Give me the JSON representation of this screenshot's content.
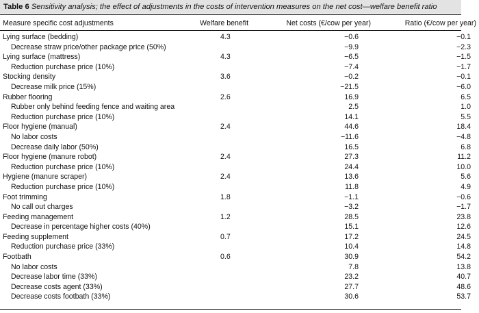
{
  "caption": {
    "label": "Table 6",
    "text": "Sensitivity analysis; the effect of adjustments in the costs of intervention measures on the net cost—welfare benefit ratio"
  },
  "headers": [
    "Measure specific cost adjustments",
    "Welfare benefit",
    "Net costs (€/cow per year)",
    "Ratio (€/cow per year)"
  ],
  "rows": [
    {
      "measure": "Lying surface (bedding)",
      "sub": false,
      "welfare": "4.3",
      "net": "−0.6",
      "ratio": "−0.1"
    },
    {
      "measure": "Decrease straw price/other package price (50%)",
      "sub": true,
      "welfare": "",
      "net": "−9.9",
      "ratio": "−2.3"
    },
    {
      "measure": "Lying surface (mattress)",
      "sub": false,
      "welfare": "4.3",
      "net": "−6.5",
      "ratio": "−1.5"
    },
    {
      "measure": "Reduction purchase price (10%)",
      "sub": true,
      "welfare": "",
      "net": "−7.4",
      "ratio": "−1.7"
    },
    {
      "measure": "Stocking density",
      "sub": false,
      "welfare": "3.6",
      "net": "−0.2",
      "ratio": "−0.1"
    },
    {
      "measure": "Decrease milk price (15%)",
      "sub": true,
      "welfare": "",
      "net": "−21.5",
      "ratio": "−6.0"
    },
    {
      "measure": "Rubber flooring",
      "sub": false,
      "welfare": "2.6",
      "net": "16.9",
      "ratio": "6.5"
    },
    {
      "measure": "Rubber only behind feeding fence and waiting area",
      "sub": true,
      "welfare": "",
      "net": "2.5",
      "ratio": "1.0"
    },
    {
      "measure": "Reduction purchase price (10%)",
      "sub": true,
      "welfare": "",
      "net": "14.1",
      "ratio": "5.5"
    },
    {
      "measure": "Floor hygiene (manual)",
      "sub": false,
      "welfare": "2.4",
      "net": "44.6",
      "ratio": "18.4"
    },
    {
      "measure": "No labor costs",
      "sub": true,
      "welfare": "",
      "net": "−11.6",
      "ratio": "−4.8"
    },
    {
      "measure": "Decrease daily labor (50%)",
      "sub": true,
      "welfare": "",
      "net": "16.5",
      "ratio": "6.8"
    },
    {
      "measure": "Floor hygiene (manure robot)",
      "sub": false,
      "welfare": "2.4",
      "net": "27.3",
      "ratio": "11.2"
    },
    {
      "measure": "Reduction purchase price (10%)",
      "sub": true,
      "welfare": "",
      "net": "24.4",
      "ratio": "10.0"
    },
    {
      "measure": "Hygiene (manure scraper)",
      "sub": false,
      "welfare": "2.4",
      "net": "13.6",
      "ratio": "5.6"
    },
    {
      "measure": "Reduction purchase price (10%)",
      "sub": true,
      "welfare": "",
      "net": "11.8",
      "ratio": "4.9"
    },
    {
      "measure": "Foot trimming",
      "sub": false,
      "welfare": "1.8",
      "net": "−1.1",
      "ratio": "−0.6"
    },
    {
      "measure": "No call out charges",
      "sub": true,
      "welfare": "",
      "net": "−3.2",
      "ratio": "−1.7"
    },
    {
      "measure": "Feeding management",
      "sub": false,
      "welfare": "1.2",
      "net": "28.5",
      "ratio": "23.8"
    },
    {
      "measure": "Decrease in percentage higher costs (40%)",
      "sub": true,
      "welfare": "",
      "net": "15.1",
      "ratio": "12.6"
    },
    {
      "measure": "Feeding supplement",
      "sub": false,
      "welfare": "0.7",
      "net": "17.2",
      "ratio": "24.5"
    },
    {
      "measure": "Reduction purchase price (33%)",
      "sub": true,
      "welfare": "",
      "net": "10.4",
      "ratio": "14.8"
    },
    {
      "measure": "Footbath",
      "sub": false,
      "welfare": "0.6",
      "net": "30.9",
      "ratio": "54.2"
    },
    {
      "measure": "No labor costs",
      "sub": true,
      "welfare": "",
      "net": "7.8",
      "ratio": "13.8"
    },
    {
      "measure": "Decrease labor time (33%)",
      "sub": true,
      "welfare": "",
      "net": "23.2",
      "ratio": "40.7"
    },
    {
      "measure": "Decrease costs agent (33%)",
      "sub": true,
      "welfare": "",
      "net": "27.7",
      "ratio": "48.6"
    },
    {
      "measure": "Decrease costs footbath (33%)",
      "sub": true,
      "welfare": "",
      "net": "30.6",
      "ratio": "53.7"
    }
  ]
}
